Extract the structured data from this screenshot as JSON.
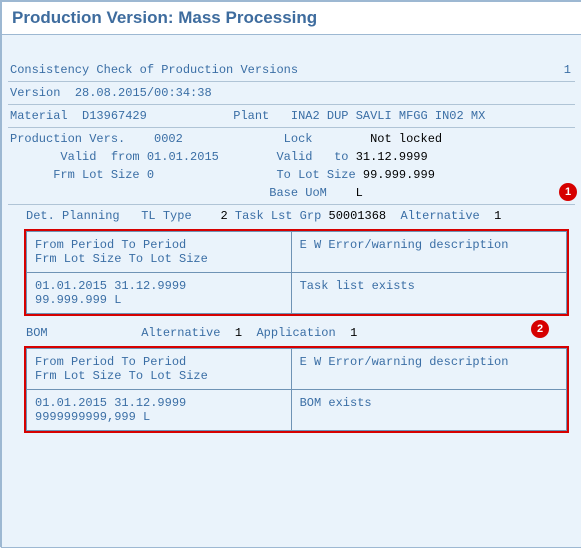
{
  "title": "Production Version: Mass Processing",
  "check": {
    "label": "Consistency Check of Production Versions",
    "count": "1"
  },
  "version": {
    "label": "Version",
    "value": "28.08.2015/00:34:38"
  },
  "material": {
    "label": "Material",
    "value": "D13967429"
  },
  "plant": {
    "label": "Plant",
    "value": "INA2",
    "desc": "DUP SAVLI MFGG IN02 MX"
  },
  "pv": {
    "label": "Production Vers.",
    "value": "0002",
    "valid_label": "Valid  from",
    "valid_from": "01.01.2015",
    "frm_lot_label": "Frm Lot Size",
    "frm_lot": "0",
    "lock_label": "Lock",
    "lock_value": "Not locked",
    "valid2_label": "Valid   to",
    "valid_to": "31.12.9999",
    "to_lot_label": "To Lot Size",
    "to_lot": "99.999.999",
    "uom_label": "Base UoM",
    "uom_value": "L"
  },
  "detplan": {
    "label": "Det. Planning",
    "tltype_label": "TL Type",
    "tltype": "2",
    "tlg_label": "Task Lst Grp",
    "tlg": "50001368",
    "alt_label": "Alternative",
    "alt": "1",
    "badge": "1"
  },
  "table_hdr": {
    "fp": "From Period",
    "tp": "To Period",
    "fls": "Frm Lot Size",
    "tls": "To Lot Size",
    "ew": "E W Error/warning description"
  },
  "t1": {
    "fp": "01.01.2015",
    "tp": "31.12.9999",
    "tls": "99.999.999",
    "uom": "L",
    "msg": "Task list exists"
  },
  "bom": {
    "label": "BOM",
    "alt_label": "Alternative",
    "alt": "1",
    "app_label": "Application",
    "app": "1",
    "badge": "2"
  },
  "t2": {
    "fp": "01.01.2015",
    "tp": "31.12.9999",
    "tls": "9999999999,999",
    "uom": "L",
    "msg": "BOM exists"
  }
}
